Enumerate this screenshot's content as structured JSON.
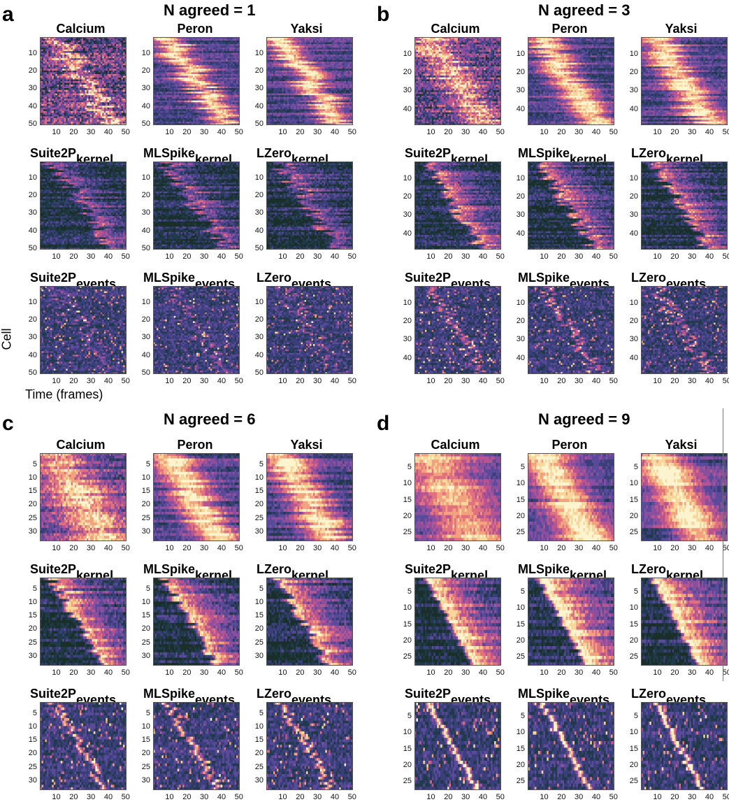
{
  "colormap": [
    "#1a2f2a",
    "#203a4a",
    "#3a3f7a",
    "#5a4a9a",
    "#8a4f9f",
    "#b85590",
    "#e0717e",
    "#f3a27f",
    "#f7d79b",
    "#fbf4cf"
  ],
  "axes_text": {
    "ylabel": "Cell",
    "xlabel": "Time (frames)"
  },
  "panels": [
    {
      "letter": "a",
      "title": "N agreed = 1",
      "cells": 50,
      "yticks": [
        "10",
        "20",
        "30",
        "40",
        "50"
      ],
      "xticks": [
        "10",
        "20",
        "30",
        "40",
        "50"
      ],
      "subplots": [
        {
          "main": "Calcium",
          "sub": ""
        },
        {
          "main": "Peron",
          "sub": ""
        },
        {
          "main": "Yaksi",
          "sub": ""
        },
        {
          "main": "Suite2P",
          "sub": "kernel"
        },
        {
          "main": "MLSpike",
          "sub": "kernel"
        },
        {
          "main": "LZero",
          "sub": "kernel"
        },
        {
          "main": "Suite2P",
          "sub": "events"
        },
        {
          "main": "MLSpike",
          "sub": "events"
        },
        {
          "main": "LZero",
          "sub": "events"
        }
      ]
    },
    {
      "letter": "b",
      "title": "N agreed = 3",
      "cells": 48,
      "yticks": [
        "10",
        "20",
        "30",
        "40"
      ],
      "xticks": [
        "10",
        "20",
        "30",
        "40",
        "50"
      ],
      "subplots": [
        {
          "main": "Calcium",
          "sub": ""
        },
        {
          "main": "Peron",
          "sub": ""
        },
        {
          "main": "Yaksi",
          "sub": ""
        },
        {
          "main": "Suite2P",
          "sub": "kernel"
        },
        {
          "main": "MLSpike",
          "sub": "kernel"
        },
        {
          "main": "LZero",
          "sub": "kernel"
        },
        {
          "main": "Suite2P",
          "sub": "events"
        },
        {
          "main": "MLSpike",
          "sub": "events"
        },
        {
          "main": "LZero",
          "sub": "events"
        }
      ]
    },
    {
      "letter": "c",
      "title": "N agreed = 6",
      "cells": 33,
      "yticks": [
        "5",
        "10",
        "15",
        "20",
        "25",
        "30"
      ],
      "xticks": [
        "10",
        "20",
        "30",
        "40",
        "50"
      ],
      "subplots": [
        {
          "main": "Calcium",
          "sub": ""
        },
        {
          "main": "Peron",
          "sub": ""
        },
        {
          "main": "Yaksi",
          "sub": ""
        },
        {
          "main": "Suite2P",
          "sub": "kernel"
        },
        {
          "main": "MLSpike",
          "sub": "kernel"
        },
        {
          "main": "LZero",
          "sub": "kernel"
        },
        {
          "main": "Suite2P",
          "sub": "events"
        },
        {
          "main": "MLSpike",
          "sub": "events"
        },
        {
          "main": "LZero",
          "sub": "events"
        }
      ]
    },
    {
      "letter": "d",
      "title": "N agreed = 9",
      "cells": 27,
      "yticks": [
        "5",
        "10",
        "15",
        "20",
        "25"
      ],
      "xticks": [
        "10",
        "20",
        "30",
        "40",
        "50"
      ],
      "subplots": [
        {
          "main": "Calcium",
          "sub": ""
        },
        {
          "main": "Peron",
          "sub": ""
        },
        {
          "main": "Yaksi",
          "sub": ""
        },
        {
          "main": "Suite2P",
          "sub": "kernel"
        },
        {
          "main": "MLSpike",
          "sub": "kernel"
        },
        {
          "main": "LZero",
          "sub": "kernel"
        },
        {
          "main": "Suite2P",
          "sub": "events"
        },
        {
          "main": "MLSpike",
          "sub": "events"
        },
        {
          "main": "LZero",
          "sub": "events"
        }
      ]
    }
  ],
  "chart_data": {
    "type": "heatmap",
    "x_axis": {
      "label": "Time (frames)",
      "range": [
        1,
        50
      ]
    },
    "y_axis": {
      "label": "Cell"
    },
    "panels": [
      {
        "title": "N agreed = 1",
        "cell_count": 50,
        "methods": [
          "Calcium",
          "Peron",
          "Yaksi",
          "Suite2P kernel",
          "MLSpike kernel",
          "LZero kernel",
          "Suite2P events",
          "MLSpike events",
          "LZero events"
        ]
      },
      {
        "title": "N agreed = 3",
        "cell_count": 48,
        "methods": [
          "Calcium",
          "Peron",
          "Yaksi",
          "Suite2P kernel",
          "MLSpike kernel",
          "LZero kernel",
          "Suite2P events",
          "MLSpike events",
          "LZero events"
        ]
      },
      {
        "title": "N agreed = 6",
        "cell_count": 33,
        "methods": [
          "Calcium",
          "Peron",
          "Yaksi",
          "Suite2P kernel",
          "MLSpike kernel",
          "LZero kernel",
          "Suite2P events",
          "MLSpike events",
          "LZero events"
        ]
      },
      {
        "title": "N agreed = 9",
        "cell_count": 27,
        "methods": [
          "Calcium",
          "Peron",
          "Yaksi",
          "Suite2P kernel",
          "MLSpike kernel",
          "LZero kernel",
          "Suite2P events",
          "MLSpike events",
          "LZero events"
        ]
      }
    ]
  }
}
